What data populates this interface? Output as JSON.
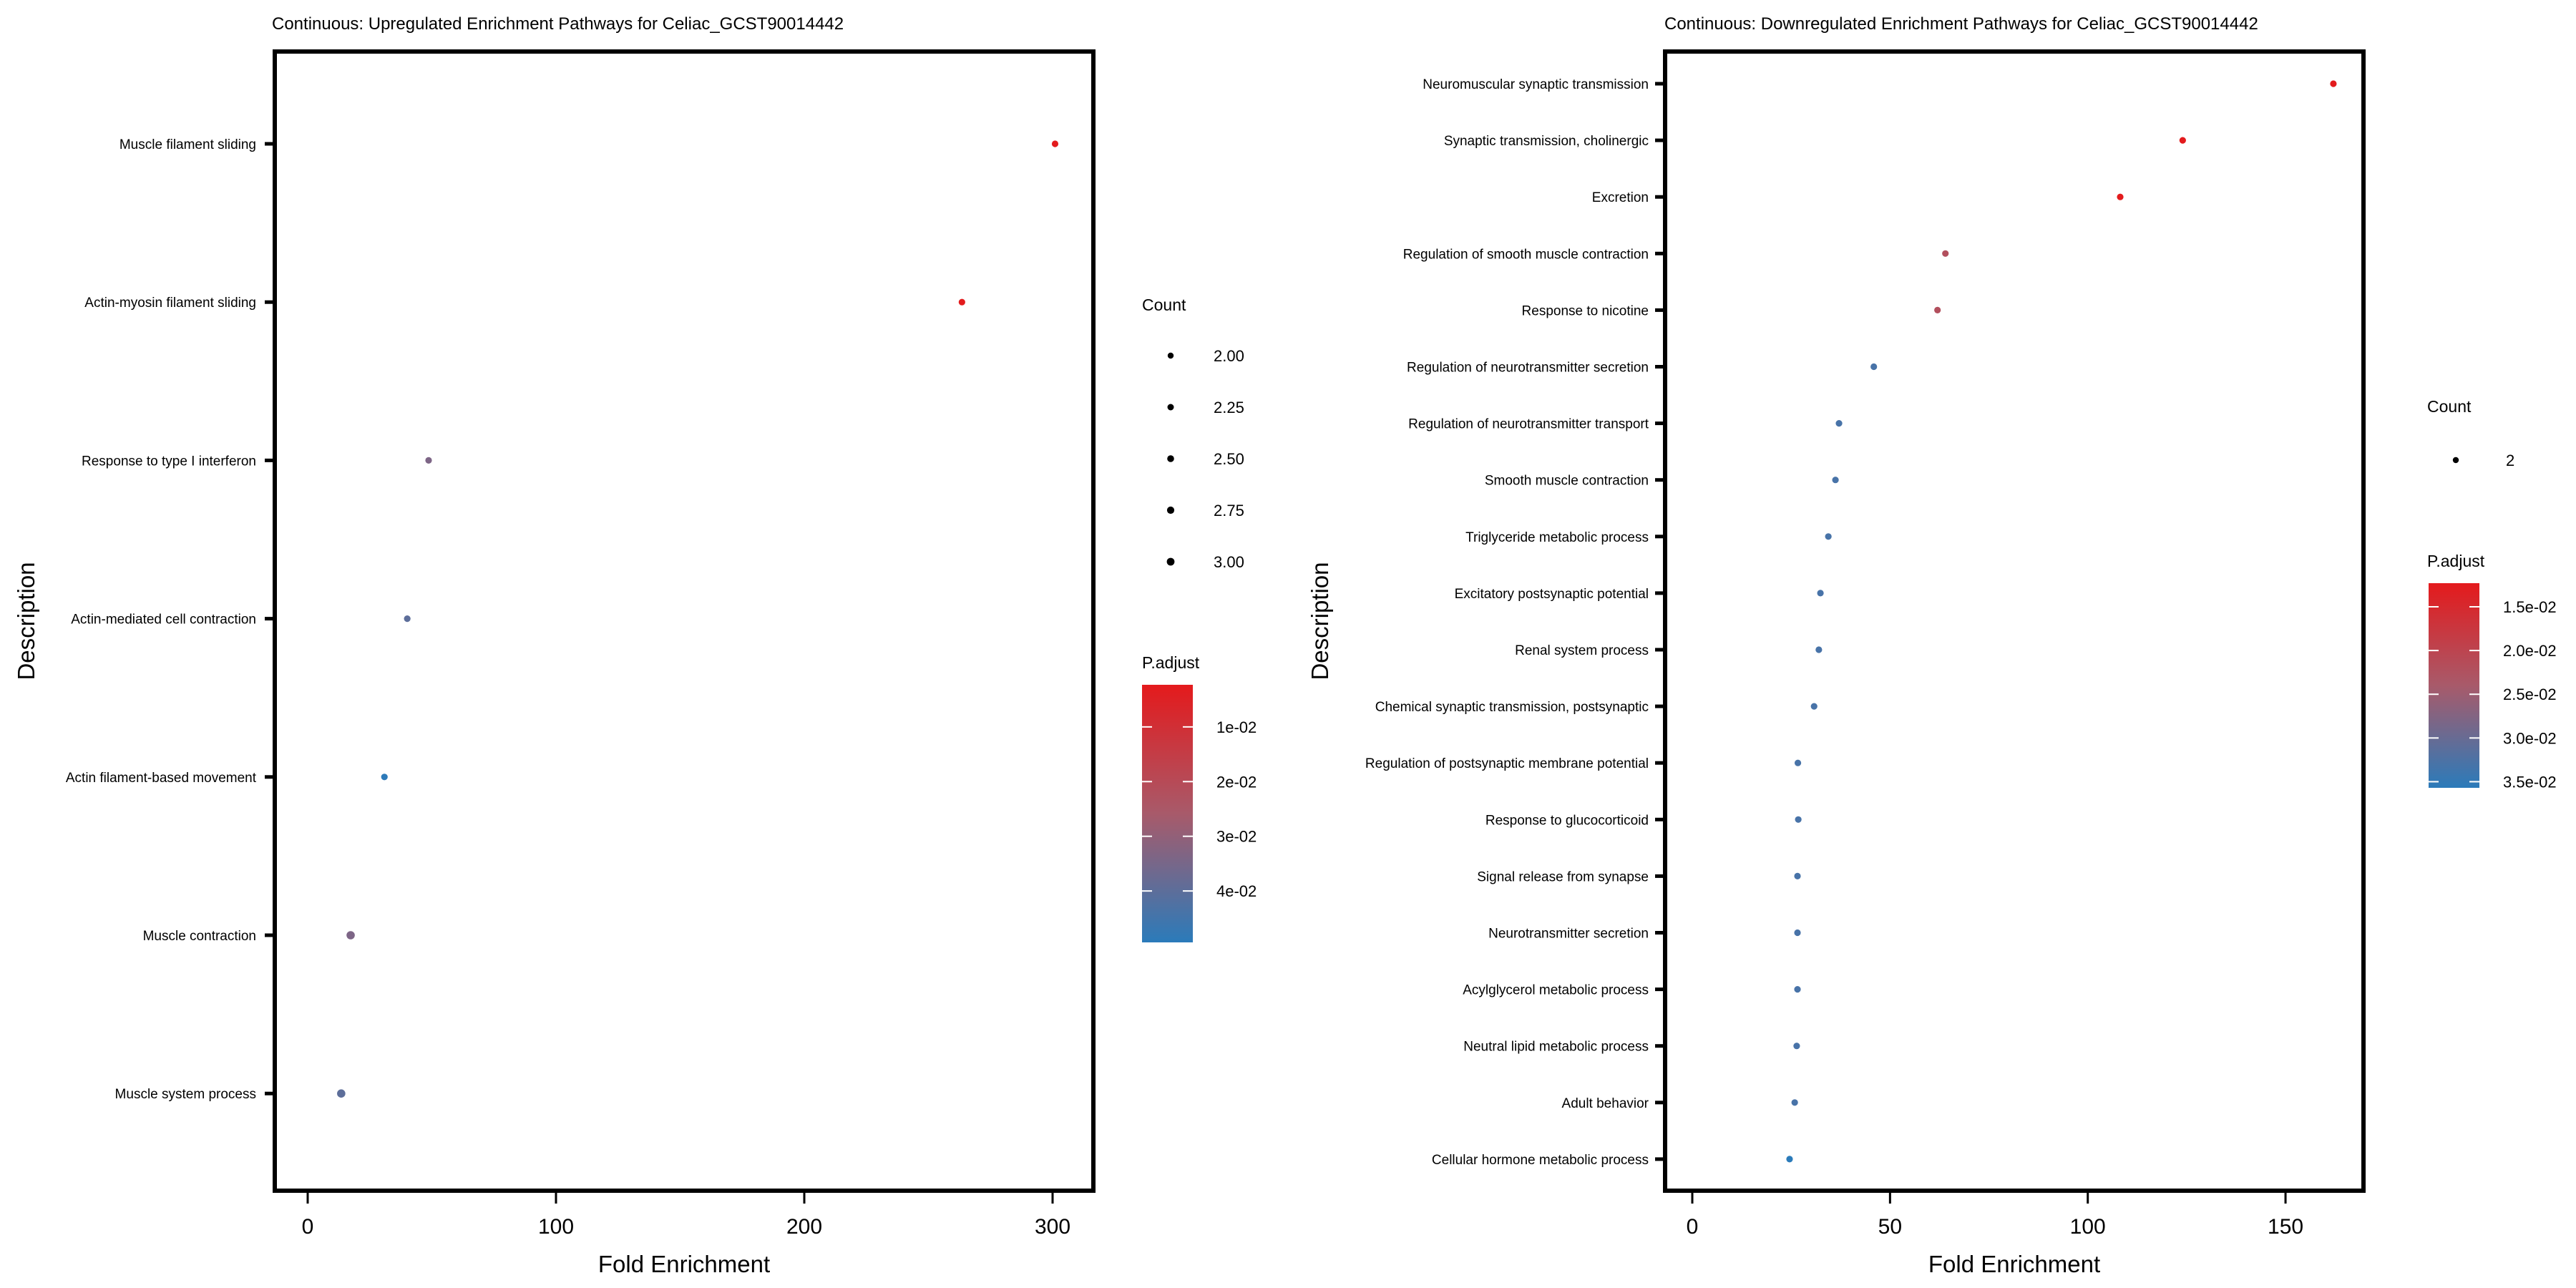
{
  "chart_data": [
    {
      "type": "scatter",
      "title": "Continuous: Upregulated Enrichment Pathways for Celiac_GCST90014442",
      "xlabel": "Fold Enrichment",
      "ylabel": "Description",
      "xlim": [
        -14,
        314
      ],
      "xticks": [
        0,
        100,
        200,
        300
      ],
      "grid": false,
      "categories": [
        "Muscle filament sliding",
        "Actin-myosin filament sliding",
        "Response to type I interferon",
        "Actin-mediated cell contraction",
        "Actin filament-based movement",
        "Muscle contraction",
        "Muscle system process"
      ],
      "points": [
        {
          "description": "Muscle filament sliding",
          "fold_enrichment": 301,
          "count": 2,
          "p_adjust": 0.0025
        },
        {
          "description": "Actin-myosin filament sliding",
          "fold_enrichment": 263.5,
          "count": 2,
          "p_adjust": 0.0025
        },
        {
          "description": "Response to type I interferon",
          "fold_enrichment": 48.7,
          "count": 2,
          "p_adjust": 0.034
        },
        {
          "description": "Actin-mediated cell contraction",
          "fold_enrichment": 40.1,
          "count": 2,
          "p_adjust": 0.04
        },
        {
          "description": "Actin filament-based movement",
          "fold_enrichment": 30.9,
          "count": 2,
          "p_adjust": 0.049
        },
        {
          "description": "Muscle contraction",
          "fold_enrichment": 17.3,
          "count": 3,
          "p_adjust": 0.034
        },
        {
          "description": "Muscle system process",
          "fold_enrichment": 13.5,
          "count": 3,
          "p_adjust": 0.04
        }
      ],
      "legend": {
        "placement": "right",
        "count_title": "Count",
        "count_labels": [
          "2.00",
          "2.25",
          "2.50",
          "2.75",
          "3.00"
        ],
        "count_values": [
          2.0,
          2.25,
          2.5,
          2.75,
          3.0
        ],
        "color_title": "P.adjust",
        "color_labels": [
          "1e-02",
          "2e-02",
          "3e-02",
          "4e-02"
        ],
        "color_values": [
          0.01,
          0.02,
          0.03,
          0.04
        ],
        "color_range": [
          0.0023,
          0.0494
        ],
        "color_low": "#E41A1C",
        "color_high": "#2B7BBA"
      }
    },
    {
      "type": "scatter",
      "title": "Continuous: Downregulated Enrichment Pathways for Celiac_GCST90014442",
      "xlabel": "Fold Enrichment",
      "ylabel": "Description",
      "xlim": [
        -7,
        170
      ],
      "xticks": [
        0,
        50,
        100,
        150
      ],
      "grid": false,
      "categories": [
        "Neuromuscular synaptic transmission",
        "Synaptic transmission, cholinergic",
        "Excretion",
        "Regulation of smooth muscle contraction",
        "Response to nicotine",
        "Regulation of neurotransmitter secretion",
        "Regulation of neurotransmitter transport",
        "Smooth muscle contraction",
        "Triglyceride metabolic process",
        "Excitatory postsynaptic potential",
        "Renal system process",
        "Chemical synaptic transmission, postsynaptic",
        "Regulation of postsynaptic membrane potential",
        "Response to glucocorticoid",
        "Signal release from synapse",
        "Neurotransmitter secretion",
        "Acylglycerol metabolic process",
        "Neutral lipid metabolic process",
        "Adult behavior",
        "Cellular hormone metabolic process"
      ],
      "points": [
        {
          "description": "Neuromuscular synaptic transmission",
          "fold_enrichment": 162.1,
          "count": 2,
          "p_adjust": 0.0125
        },
        {
          "description": "Synaptic transmission, cholinergic",
          "fold_enrichment": 124.0,
          "count": 2,
          "p_adjust": 0.0125
        },
        {
          "description": "Excretion",
          "fold_enrichment": 108.2,
          "count": 2,
          "p_adjust": 0.0125
        },
        {
          "description": "Regulation of smooth muscle contraction",
          "fold_enrichment": 64.0,
          "count": 2,
          "p_adjust": 0.022
        },
        {
          "description": "Response to nicotine",
          "fold_enrichment": 62.0,
          "count": 2,
          "p_adjust": 0.022
        },
        {
          "description": "Regulation of neurotransmitter secretion",
          "fold_enrichment": 45.9,
          "count": 2,
          "p_adjust": 0.033
        },
        {
          "description": "Regulation of neurotransmitter transport",
          "fold_enrichment": 37.1,
          "count": 2,
          "p_adjust": 0.033
        },
        {
          "description": "Smooth muscle contraction",
          "fold_enrichment": 36.2,
          "count": 2,
          "p_adjust": 0.033
        },
        {
          "description": "Triglyceride metabolic process",
          "fold_enrichment": 34.4,
          "count": 2,
          "p_adjust": 0.033
        },
        {
          "description": "Excitatory postsynaptic potential",
          "fold_enrichment": 32.4,
          "count": 2,
          "p_adjust": 0.033
        },
        {
          "description": "Renal system process",
          "fold_enrichment": 32.0,
          "count": 2,
          "p_adjust": 0.033
        },
        {
          "description": "Chemical synaptic transmission, postsynaptic",
          "fold_enrichment": 30.8,
          "count": 2,
          "p_adjust": 0.033
        },
        {
          "description": "Regulation of postsynaptic membrane potential",
          "fold_enrichment": 26.7,
          "count": 2,
          "p_adjust": 0.033
        },
        {
          "description": "Response to glucocorticoid",
          "fold_enrichment": 26.8,
          "count": 2,
          "p_adjust": 0.033
        },
        {
          "description": "Signal release from synapse",
          "fold_enrichment": 26.6,
          "count": 2,
          "p_adjust": 0.033
        },
        {
          "description": "Neurotransmitter secretion",
          "fold_enrichment": 26.6,
          "count": 2,
          "p_adjust": 0.033
        },
        {
          "description": "Acylglycerol metabolic process",
          "fold_enrichment": 26.6,
          "count": 2,
          "p_adjust": 0.033
        },
        {
          "description": "Neutral lipid metabolic process",
          "fold_enrichment": 26.4,
          "count": 2,
          "p_adjust": 0.033
        },
        {
          "description": "Adult behavior",
          "fold_enrichment": 25.9,
          "count": 2,
          "p_adjust": 0.033
        },
        {
          "description": "Cellular hormone metabolic process",
          "fold_enrichment": 24.6,
          "count": 2,
          "p_adjust": 0.036
        }
      ],
      "legend": {
        "placement": "right",
        "count_title": "Count",
        "count_labels": [
          "2"
        ],
        "count_values": [
          2
        ],
        "color_title": "P.adjust",
        "color_labels": [
          "1.5e-02",
          "2.0e-02",
          "2.5e-02",
          "3.0e-02",
          "3.5e-02"
        ],
        "color_values": [
          0.015,
          0.02,
          0.025,
          0.03,
          0.035
        ],
        "color_range": [
          0.0123,
          0.0357
        ],
        "color_low": "#E41A1C",
        "color_high": "#2B7BBA"
      }
    }
  ]
}
